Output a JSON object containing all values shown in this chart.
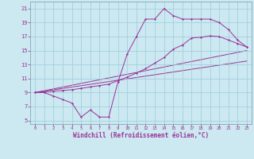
{
  "line1_x": [
    0,
    1,
    2,
    3,
    4,
    5,
    6,
    7,
    8,
    9,
    10,
    11,
    12,
    13,
    14,
    15,
    16,
    17,
    18,
    19,
    20,
    21,
    22,
    23
  ],
  "line1_y": [
    9,
    9,
    8.5,
    8,
    7.5,
    5.5,
    6.5,
    5.5,
    5.5,
    10.5,
    14.5,
    17,
    19.5,
    19.5,
    21,
    20,
    19.5,
    19.5,
    19.5,
    19.5,
    19,
    18,
    16.5,
    15.5
  ],
  "line2_x": [
    0,
    1,
    2,
    3,
    4,
    5,
    6,
    7,
    8,
    9,
    10,
    11,
    12,
    13,
    14,
    15,
    16,
    17,
    18,
    19,
    20,
    21,
    22,
    23
  ],
  "line2_y": [
    9,
    9.1,
    9.2,
    9.3,
    9.4,
    9.6,
    9.8,
    10.0,
    10.2,
    10.7,
    11.2,
    11.8,
    12.4,
    13.2,
    14.0,
    15.2,
    15.8,
    16.8,
    16.9,
    17.1,
    17.0,
    16.5,
    16.0,
    15.5
  ],
  "line3_x": [
    0,
    23
  ],
  "line3_y": [
    9,
    13.5
  ],
  "line4_x": [
    0,
    23
  ],
  "line4_y": [
    9,
    15.0
  ],
  "color": "#993399",
  "bg_color": "#cce8f0",
  "grid_color": "#99ccdd",
  "xlabel": "Windchill (Refroidissement éolien,°C)",
  "ytick_labels": [
    "5",
    "7",
    "9",
    "11",
    "13",
    "15",
    "17",
    "19",
    "21"
  ],
  "ytick_vals": [
    5,
    7,
    9,
    11,
    13,
    15,
    17,
    19,
    21
  ],
  "xtick_vals": [
    0,
    1,
    2,
    3,
    4,
    5,
    6,
    7,
    8,
    9,
    10,
    11,
    12,
    13,
    14,
    15,
    16,
    17,
    18,
    19,
    20,
    21,
    22,
    23
  ],
  "xlim": [
    -0.5,
    23.5
  ],
  "ylim": [
    4.5,
    22.0
  ]
}
